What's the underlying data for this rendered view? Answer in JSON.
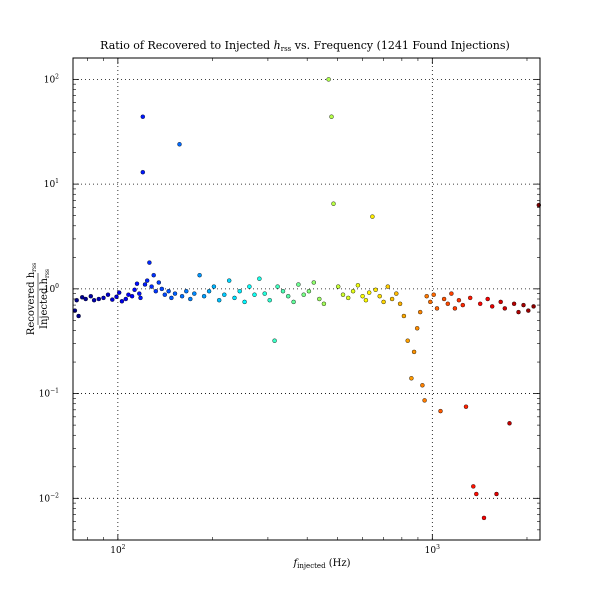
{
  "chart_data": {
    "type": "scatter",
    "title_prefix": "Ratio of Recovered to Injected ",
    "title_h": "h",
    "title_sub": "rss",
    "title_suffix": " vs. Frequency (1241 Found Injections)",
    "xlabel_f": "f",
    "xlabel_sub": "injected",
    "xlabel_unit": " (Hz)",
    "ylabel_num": "Recovered h",
    "ylabel_num_sub": "rss",
    "ylabel_den": "Injected h",
    "ylabel_den_sub": "rss",
    "x_scale": "log",
    "y_scale": "log",
    "xlim": [
      72,
      2200
    ],
    "ylim": [
      0.004,
      160
    ],
    "grid": true,
    "grid_style": "dotted",
    "colormap": "jet by frequency",
    "x_ticks": [
      {
        "value": 100,
        "base": "10",
        "exp": "2"
      },
      {
        "value": 1000,
        "base": "10",
        "exp": "3"
      }
    ],
    "y_ticks": [
      {
        "value": 0.01,
        "base": "10",
        "exp": "−2"
      },
      {
        "value": 0.1,
        "base": "10",
        "exp": "−1"
      },
      {
        "value": 1,
        "base": "10",
        "exp": "0"
      },
      {
        "value": 10,
        "base": "10",
        "exp": "1"
      },
      {
        "value": 100,
        "base": "10",
        "exp": "2"
      }
    ],
    "points": [
      [
        73,
        0.62
      ],
      [
        74,
        0.78
      ],
      [
        75,
        0.55
      ],
      [
        77,
        0.83
      ],
      [
        79,
        0.8
      ],
      [
        82,
        0.85
      ],
      [
        84,
        0.78
      ],
      [
        87,
        0.8
      ],
      [
        90,
        0.82
      ],
      [
        93,
        0.88
      ],
      [
        96,
        0.79
      ],
      [
        99,
        0.84
      ],
      [
        101,
        0.92
      ],
      [
        103,
        0.76
      ],
      [
        106,
        0.8
      ],
      [
        108,
        0.88
      ],
      [
        111,
        0.85
      ],
      [
        113,
        0.98
      ],
      [
        115,
        1.12
      ],
      [
        117,
        0.9
      ],
      [
        118,
        0.82
      ],
      [
        120,
        44.0
      ],
      [
        120,
        13.0
      ],
      [
        122,
        1.1
      ],
      [
        124,
        1.2
      ],
      [
        126,
        1.78
      ],
      [
        128,
        1.05
      ],
      [
        130,
        1.35
      ],
      [
        132,
        0.95
      ],
      [
        135,
        1.15
      ],
      [
        138,
        1.0
      ],
      [
        141,
        0.88
      ],
      [
        145,
        0.95
      ],
      [
        148,
        0.82
      ],
      [
        152,
        0.9
      ],
      [
        157,
        24.0
      ],
      [
        160,
        0.85
      ],
      [
        165,
        0.95
      ],
      [
        170,
        0.8
      ],
      [
        175,
        0.9
      ],
      [
        182,
        1.35
      ],
      [
        188,
        0.85
      ],
      [
        195,
        0.95
      ],
      [
        202,
        1.05
      ],
      [
        210,
        0.78
      ],
      [
        218,
        0.88
      ],
      [
        226,
        1.2
      ],
      [
        235,
        0.82
      ],
      [
        244,
        0.95
      ],
      [
        253,
        0.75
      ],
      [
        262,
        1.05
      ],
      [
        272,
        0.88
      ],
      [
        282,
        1.25
      ],
      [
        293,
        0.9
      ],
      [
        304,
        0.78
      ],
      [
        315,
        0.32
      ],
      [
        322,
        1.05
      ],
      [
        335,
        0.95
      ],
      [
        348,
        0.85
      ],
      [
        362,
        0.75
      ],
      [
        375,
        1.1
      ],
      [
        390,
        0.88
      ],
      [
        405,
        0.95
      ],
      [
        420,
        1.15
      ],
      [
        437,
        0.8
      ],
      [
        452,
        0.72
      ],
      [
        468,
        100.0
      ],
      [
        478,
        44.0
      ],
      [
        485,
        6.5
      ],
      [
        502,
        1.05
      ],
      [
        520,
        0.88
      ],
      [
        540,
        0.82
      ],
      [
        560,
        0.95
      ],
      [
        580,
        1.08
      ],
      [
        600,
        0.85
      ],
      [
        615,
        0.78
      ],
      [
        630,
        0.92
      ],
      [
        645,
        4.9
      ],
      [
        660,
        0.98
      ],
      [
        680,
        0.85
      ],
      [
        700,
        0.75
      ],
      [
        722,
        1.05
      ],
      [
        745,
        0.8
      ],
      [
        768,
        0.9
      ],
      [
        790,
        0.72
      ],
      [
        812,
        0.55
      ],
      [
        835,
        0.32
      ],
      [
        858,
        0.14
      ],
      [
        875,
        0.25
      ],
      [
        895,
        0.42
      ],
      [
        915,
        0.6
      ],
      [
        930,
        0.12
      ],
      [
        945,
        0.086
      ],
      [
        960,
        0.85
      ],
      [
        985,
        0.75
      ],
      [
        1010,
        0.88
      ],
      [
        1035,
        0.65
      ],
      [
        1062,
        0.068
      ],
      [
        1090,
        0.8
      ],
      [
        1120,
        0.72
      ],
      [
        1150,
        0.9
      ],
      [
        1180,
        0.65
      ],
      [
        1215,
        0.78
      ],
      [
        1250,
        0.7
      ],
      [
        1280,
        0.075
      ],
      [
        1320,
        0.82
      ],
      [
        1350,
        0.013
      ],
      [
        1380,
        0.011
      ],
      [
        1420,
        0.72
      ],
      [
        1460,
        0.0065
      ],
      [
        1500,
        0.8
      ],
      [
        1550,
        0.68
      ],
      [
        1600,
        0.011
      ],
      [
        1650,
        0.75
      ],
      [
        1700,
        0.65
      ],
      [
        1760,
        0.052
      ],
      [
        1820,
        0.72
      ],
      [
        1880,
        0.6
      ],
      [
        1950,
        0.7
      ],
      [
        2020,
        0.62
      ],
      [
        2100,
        0.68
      ],
      [
        2180,
        6.3
      ]
    ]
  }
}
